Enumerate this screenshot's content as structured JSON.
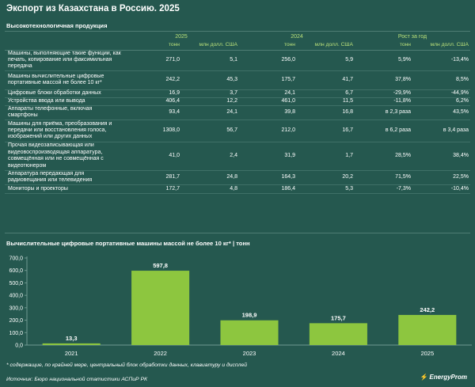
{
  "title": "Экспорт из Казахстана в Россию. 2025",
  "table": {
    "section_title": "Высокотехнологичная продукция",
    "year_headers": [
      "2025",
      "2024",
      "Рост за год"
    ],
    "unit_headers": [
      "тонн",
      "млн долл. США",
      "тонн",
      "млн долл. США",
      "тонн",
      "млн долл. США"
    ],
    "rows": [
      {
        "name": "Машины, выполняющие такие функции, как печать, копирование или факсимильная передача",
        "v": [
          "271,0",
          "5,1",
          "256,0",
          "5,9",
          "5,9%",
          "-13,4%"
        ]
      },
      {
        "name": "Машины вычислительные цифровые портативные массой не более 10 кг*",
        "v": [
          "242,2",
          "45,3",
          "175,7",
          "41,7",
          "37,8%",
          "8,5%"
        ]
      },
      {
        "name": "Цифровые блоки обработки данных",
        "v": [
          "16,9",
          "3,7",
          "24,1",
          "6,7",
          "-29,9%",
          "-44,9%"
        ]
      },
      {
        "name": "Устройства ввода или вывода",
        "v": [
          "406,4",
          "12,2",
          "461,0",
          "11,5",
          "-11,8%",
          "6,2%"
        ]
      },
      {
        "name": "Аппараты телефонные, включая смартфоны",
        "v": [
          "93,4",
          "24,1",
          "39,8",
          "16,8",
          "в 2,3 раза",
          "43,5%"
        ]
      },
      {
        "name": "Машины для приёма, преобразования и передачи или восстановления голоса, изображений или других данных",
        "v": [
          "1308,0",
          "56,7",
          "212,0",
          "16,7",
          "в 6,2 раза",
          "в 3,4 раза"
        ]
      },
      {
        "name": "Прочая видеозаписывающая или видеовоспроизводящая аппаратура, совмещённая или не совмещённая с видеотюнером",
        "v": [
          "41,0",
          "2,4",
          "31,9",
          "1,7",
          "28,5%",
          "38,4%"
        ]
      },
      {
        "name": "Аппаратура передающая для радиовещания или телевидения",
        "v": [
          "281,7",
          "24,8",
          "164,3",
          "20,2",
          "71,5%",
          "22,5%"
        ]
      },
      {
        "name": "Мониторы и проекторы",
        "v": [
          "172,7",
          "4,8",
          "186,4",
          "5,3",
          "-7,3%",
          "-10,4%"
        ]
      }
    ]
  },
  "chart_data": {
    "type": "bar",
    "title": "Вычислительные цифровые портативные машины массой не более 10 кг* | тонн",
    "categories": [
      "2021",
      "2022",
      "2023",
      "2024",
      "2025"
    ],
    "values": [
      13.3,
      597.8,
      198.9,
      175.7,
      242.2
    ],
    "value_labels": [
      "13,3",
      "597,8",
      "198,9",
      "175,7",
      "242,2"
    ],
    "ytick_labels": [
      "0,0",
      "100,0",
      "200,0",
      "300,0",
      "400,0",
      "500,0",
      "600,0",
      "700,0"
    ],
    "ylim": [
      0,
      700
    ],
    "grid": false,
    "bar_color": "#8dc63f"
  },
  "footnote": "* содержащие, по крайней мере, центральный блок обработки данных, клавиатуру и дисплей",
  "source": "Источник: Бюро национальной статистики АСПиР РК",
  "logo_text": "EnergyProm",
  "colors": {
    "background": "#25584f",
    "accent": "#b9e07a",
    "bar": "#8dc63f"
  }
}
